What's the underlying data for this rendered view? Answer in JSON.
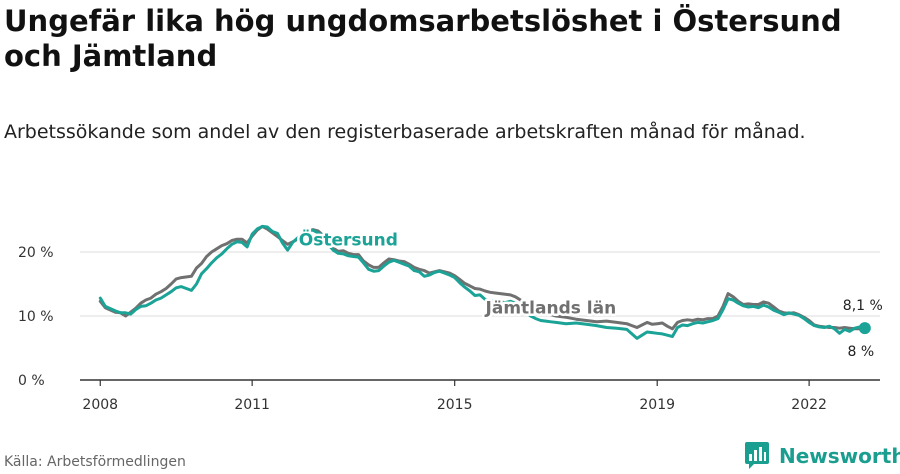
{
  "title": "Ungefär lika hög ungdomsarbetslöshet i Östersund och Jämtland",
  "subtitle": "Arbetssökande som andel av den registerbaserade arbetskraften månad för månad.",
  "source": "Källa: Arbetsförmedlingen",
  "brand": "Newsworthy",
  "colors": {
    "ostersund": "#1aa396",
    "jamtland": "#707070",
    "grid": "#dddddd",
    "axis": "#333333"
  },
  "chart_data": {
    "type": "line",
    "xlim": [
      2007.6,
      2023.4
    ],
    "ylim": [
      0,
      20
    ],
    "x_ticks": [
      {
        "value": 2008,
        "label": "2008"
      },
      {
        "value": 2011,
        "label": "2011"
      },
      {
        "value": 2015,
        "label": "2015"
      },
      {
        "value": 2019,
        "label": "2019"
      },
      {
        "value": 2022,
        "label": "2022"
      }
    ],
    "y_ticks": [
      {
        "value": 0,
        "label": "0 %"
      },
      {
        "value": 10,
        "label": "10 %"
      },
      {
        "value": 20,
        "label": "20 %"
      }
    ],
    "grid": true,
    "series": [
      {
        "name": "Jämtlands län",
        "color": "#707070",
        "label_at": [
          2016.9,
          10.4
        ],
        "end_label": "8 %",
        "points": [
          [
            2008.0,
            12.3
          ],
          [
            2008.1,
            11.3
          ],
          [
            2008.3,
            10.6
          ],
          [
            2008.4,
            10.5
          ],
          [
            2008.5,
            10.0
          ],
          [
            2008.6,
            10.6
          ],
          [
            2008.7,
            11.2
          ],
          [
            2008.8,
            12.0
          ],
          [
            2008.9,
            12.5
          ],
          [
            2009.0,
            12.8
          ],
          [
            2009.1,
            13.4
          ],
          [
            2009.2,
            13.8
          ],
          [
            2009.3,
            14.3
          ],
          [
            2009.4,
            15.0
          ],
          [
            2009.5,
            15.8
          ],
          [
            2009.6,
            16.0
          ],
          [
            2009.8,
            16.2
          ],
          [
            2009.9,
            17.5
          ],
          [
            2010.0,
            18.2
          ],
          [
            2010.1,
            19.3
          ],
          [
            2010.2,
            20.0
          ],
          [
            2010.3,
            20.5
          ],
          [
            2010.4,
            21.0
          ],
          [
            2010.5,
            21.3
          ],
          [
            2010.6,
            21.8
          ],
          [
            2010.7,
            22.0
          ],
          [
            2010.8,
            22.0
          ],
          [
            2010.9,
            21.4
          ],
          [
            2011.0,
            22.5
          ],
          [
            2011.1,
            23.4
          ],
          [
            2011.2,
            24.0
          ],
          [
            2011.3,
            23.6
          ],
          [
            2011.4,
            23.0
          ],
          [
            2011.5,
            22.4
          ],
          [
            2011.6,
            21.8
          ],
          [
            2011.7,
            21.2
          ],
          [
            2011.8,
            21.6
          ],
          [
            2011.9,
            22.0
          ],
          [
            2012.0,
            22.6
          ],
          [
            2012.1,
            23.2
          ],
          [
            2012.2,
            23.5
          ],
          [
            2012.3,
            23.3
          ],
          [
            2012.4,
            22.6
          ],
          [
            2012.5,
            21.4
          ],
          [
            2012.6,
            20.6
          ],
          [
            2012.7,
            20.1
          ],
          [
            2012.8,
            20.2
          ],
          [
            2012.9,
            19.8
          ],
          [
            2013.0,
            19.6
          ],
          [
            2013.1,
            19.6
          ],
          [
            2013.2,
            18.6
          ],
          [
            2013.3,
            18.0
          ],
          [
            2013.4,
            17.6
          ],
          [
            2013.5,
            17.6
          ],
          [
            2013.6,
            18.3
          ],
          [
            2013.7,
            18.9
          ],
          [
            2013.8,
            18.8
          ],
          [
            2013.9,
            18.6
          ],
          [
            2014.0,
            18.5
          ],
          [
            2014.1,
            18.1
          ],
          [
            2014.2,
            17.6
          ],
          [
            2014.3,
            17.3
          ],
          [
            2014.4,
            17.1
          ],
          [
            2014.5,
            16.7
          ],
          [
            2014.6,
            16.9
          ],
          [
            2014.7,
            17.1
          ],
          [
            2014.8,
            16.9
          ],
          [
            2014.9,
            16.7
          ],
          [
            2015.0,
            16.3
          ],
          [
            2015.1,
            15.7
          ],
          [
            2015.2,
            15.1
          ],
          [
            2015.3,
            14.7
          ],
          [
            2015.4,
            14.3
          ],
          [
            2015.5,
            14.2
          ],
          [
            2015.6,
            13.9
          ],
          [
            2015.7,
            13.7
          ],
          [
            2015.8,
            13.6
          ],
          [
            2015.9,
            13.5
          ],
          [
            2016.0,
            13.4
          ],
          [
            2016.1,
            13.3
          ],
          [
            2016.2,
            13.0
          ],
          [
            2016.3,
            12.5
          ],
          [
            2016.4,
            12.0
          ],
          [
            2016.5,
            11.5
          ],
          [
            2016.6,
            11.2
          ],
          [
            2016.7,
            10.8
          ],
          [
            2016.8,
            10.5
          ],
          [
            2016.9,
            10.2
          ],
          [
            2017.0,
            10.0
          ],
          [
            2017.2,
            9.8
          ],
          [
            2017.4,
            9.5
          ],
          [
            2017.6,
            9.3
          ],
          [
            2017.8,
            9.1
          ],
          [
            2018.0,
            9.2
          ],
          [
            2018.2,
            9.0
          ],
          [
            2018.4,
            8.8
          ],
          [
            2018.5,
            8.5
          ],
          [
            2018.6,
            8.2
          ],
          [
            2018.7,
            8.6
          ],
          [
            2018.8,
            9.0
          ],
          [
            2018.9,
            8.7
          ],
          [
            2019.0,
            8.8
          ],
          [
            2019.1,
            8.9
          ],
          [
            2019.2,
            8.4
          ],
          [
            2019.3,
            8.0
          ],
          [
            2019.4,
            9.0
          ],
          [
            2019.5,
            9.3
          ],
          [
            2019.6,
            9.4
          ],
          [
            2019.7,
            9.3
          ],
          [
            2019.8,
            9.5
          ],
          [
            2019.9,
            9.4
          ],
          [
            2020.0,
            9.6
          ],
          [
            2020.1,
            9.6
          ],
          [
            2020.2,
            10.0
          ],
          [
            2020.3,
            11.5
          ],
          [
            2020.4,
            13.5
          ],
          [
            2020.5,
            13.0
          ],
          [
            2020.6,
            12.3
          ],
          [
            2020.7,
            11.8
          ],
          [
            2020.8,
            11.9
          ],
          [
            2020.9,
            11.8
          ],
          [
            2021.0,
            11.8
          ],
          [
            2021.1,
            12.2
          ],
          [
            2021.2,
            12.0
          ],
          [
            2021.3,
            11.4
          ],
          [
            2021.4,
            10.8
          ],
          [
            2021.5,
            10.5
          ],
          [
            2021.6,
            10.4
          ],
          [
            2021.7,
            10.5
          ],
          [
            2021.8,
            10.2
          ],
          [
            2021.9,
            9.8
          ],
          [
            2022.0,
            9.3
          ],
          [
            2022.1,
            8.6
          ],
          [
            2022.2,
            8.4
          ],
          [
            2022.3,
            8.3
          ],
          [
            2022.4,
            8.2
          ],
          [
            2022.5,
            8.2
          ],
          [
            2022.6,
            8.1
          ],
          [
            2022.7,
            8.2
          ],
          [
            2022.8,
            8.1
          ],
          [
            2022.9,
            8.0
          ],
          [
            2023.0,
            8.0
          ],
          [
            2023.1,
            8.0
          ]
        ]
      },
      {
        "name": "Östersund",
        "color": "#1aa396",
        "label_at": [
          2012.9,
          21.0
        ],
        "end_label": "8,1 %",
        "points": [
          [
            2008.0,
            12.8
          ],
          [
            2008.1,
            11.5
          ],
          [
            2008.3,
            10.8
          ],
          [
            2008.4,
            10.5
          ],
          [
            2008.5,
            10.5
          ],
          [
            2008.6,
            10.3
          ],
          [
            2008.7,
            11.0
          ],
          [
            2008.8,
            11.5
          ],
          [
            2008.9,
            11.6
          ],
          [
            2009.0,
            12.0
          ],
          [
            2009.1,
            12.5
          ],
          [
            2009.2,
            12.8
          ],
          [
            2009.3,
            13.3
          ],
          [
            2009.4,
            13.8
          ],
          [
            2009.5,
            14.4
          ],
          [
            2009.6,
            14.6
          ],
          [
            2009.8,
            14.0
          ],
          [
            2009.9,
            15.0
          ],
          [
            2010.0,
            16.6
          ],
          [
            2010.1,
            17.4
          ],
          [
            2010.2,
            18.3
          ],
          [
            2010.3,
            19.1
          ],
          [
            2010.4,
            19.7
          ],
          [
            2010.5,
            20.5
          ],
          [
            2010.6,
            21.2
          ],
          [
            2010.7,
            21.6
          ],
          [
            2010.8,
            21.5
          ],
          [
            2010.9,
            20.8
          ],
          [
            2011.0,
            22.8
          ],
          [
            2011.1,
            23.6
          ],
          [
            2011.2,
            24.0
          ],
          [
            2011.3,
            23.9
          ],
          [
            2011.4,
            23.2
          ],
          [
            2011.5,
            22.9
          ],
          [
            2011.6,
            21.4
          ],
          [
            2011.7,
            20.3
          ],
          [
            2011.8,
            21.5
          ],
          [
            2011.9,
            22.2
          ],
          [
            2012.0,
            23.0
          ],
          [
            2012.1,
            23.5
          ],
          [
            2012.2,
            23.4
          ],
          [
            2012.3,
            23.0
          ],
          [
            2012.4,
            22.6
          ],
          [
            2012.5,
            21.2
          ],
          [
            2012.6,
            20.3
          ],
          [
            2012.7,
            19.8
          ],
          [
            2012.8,
            19.7
          ],
          [
            2012.9,
            19.4
          ],
          [
            2013.0,
            19.3
          ],
          [
            2013.1,
            19.2
          ],
          [
            2013.2,
            18.3
          ],
          [
            2013.3,
            17.3
          ],
          [
            2013.4,
            17.0
          ],
          [
            2013.5,
            17.1
          ],
          [
            2013.6,
            17.8
          ],
          [
            2013.7,
            18.4
          ],
          [
            2013.8,
            18.7
          ],
          [
            2013.9,
            18.4
          ],
          [
            2014.0,
            18.1
          ],
          [
            2014.1,
            17.8
          ],
          [
            2014.2,
            17.1
          ],
          [
            2014.3,
            16.9
          ],
          [
            2014.4,
            16.2
          ],
          [
            2014.5,
            16.4
          ],
          [
            2014.6,
            16.8
          ],
          [
            2014.7,
            17.0
          ],
          [
            2014.8,
            16.7
          ],
          [
            2014.9,
            16.4
          ],
          [
            2015.0,
            16.0
          ],
          [
            2015.1,
            15.2
          ],
          [
            2015.2,
            14.5
          ],
          [
            2015.3,
            13.9
          ],
          [
            2015.4,
            13.2
          ],
          [
            2015.5,
            13.3
          ],
          [
            2015.6,
            12.6
          ],
          [
            2015.7,
            12.4
          ],
          [
            2015.8,
            12.3
          ],
          [
            2015.9,
            12.2
          ],
          [
            2016.0,
            12.1
          ],
          [
            2016.1,
            12.3
          ],
          [
            2016.2,
            12.0
          ],
          [
            2016.3,
            11.2
          ],
          [
            2016.4,
            10.6
          ],
          [
            2016.5,
            10.0
          ],
          [
            2016.6,
            9.6
          ],
          [
            2016.7,
            9.3
          ],
          [
            2016.8,
            9.2
          ],
          [
            2016.9,
            9.1
          ],
          [
            2017.0,
            9.0
          ],
          [
            2017.2,
            8.8
          ],
          [
            2017.4,
            8.9
          ],
          [
            2017.6,
            8.7
          ],
          [
            2017.8,
            8.5
          ],
          [
            2018.0,
            8.2
          ],
          [
            2018.2,
            8.1
          ],
          [
            2018.4,
            7.9
          ],
          [
            2018.5,
            7.2
          ],
          [
            2018.6,
            6.5
          ],
          [
            2018.7,
            7.0
          ],
          [
            2018.8,
            7.5
          ],
          [
            2018.9,
            7.4
          ],
          [
            2019.0,
            7.3
          ],
          [
            2019.1,
            7.2
          ],
          [
            2019.2,
            7.0
          ],
          [
            2019.3,
            6.8
          ],
          [
            2019.4,
            8.2
          ],
          [
            2019.5,
            8.6
          ],
          [
            2019.6,
            8.5
          ],
          [
            2019.7,
            8.8
          ],
          [
            2019.8,
            9.0
          ],
          [
            2019.9,
            8.9
          ],
          [
            2020.0,
            9.1
          ],
          [
            2020.1,
            9.3
          ],
          [
            2020.2,
            9.6
          ],
          [
            2020.3,
            11.0
          ],
          [
            2020.4,
            12.7
          ],
          [
            2020.5,
            12.5
          ],
          [
            2020.6,
            12.0
          ],
          [
            2020.7,
            11.6
          ],
          [
            2020.8,
            11.4
          ],
          [
            2020.9,
            11.5
          ],
          [
            2021.0,
            11.3
          ],
          [
            2021.1,
            11.7
          ],
          [
            2021.2,
            11.4
          ],
          [
            2021.3,
            10.9
          ],
          [
            2021.4,
            10.6
          ],
          [
            2021.5,
            10.2
          ],
          [
            2021.6,
            10.5
          ],
          [
            2021.7,
            10.3
          ],
          [
            2021.8,
            10.1
          ],
          [
            2021.9,
            9.6
          ],
          [
            2022.0,
            9.0
          ],
          [
            2022.1,
            8.5
          ],
          [
            2022.2,
            8.3
          ],
          [
            2022.3,
            8.2
          ],
          [
            2022.4,
            8.4
          ],
          [
            2022.5,
            8.0
          ],
          [
            2022.6,
            7.3
          ],
          [
            2022.7,
            7.9
          ],
          [
            2022.8,
            7.6
          ],
          [
            2022.9,
            8.1
          ],
          [
            2023.0,
            8.3
          ],
          [
            2023.1,
            8.1
          ]
        ]
      }
    ]
  }
}
